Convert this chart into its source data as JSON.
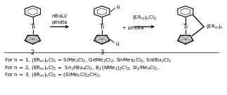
{
  "figsize": [
    3.23,
    1.36
  ],
  "dpi": 100,
  "bg_color": "#ffffff",
  "lines": [
    "For n = 1, (ER$_m$)$_n$Cl$_2$ = SiMe$_2$Cl$_2$, GeMe$_2$Cl$_2$, SnMes$_2$Cl$_2$, Sn$t$Bu$_2$Cl$_2$",
    "For n = 2, (ER$_m$)$_n$Cl$_2$ =  Sn$_2$$t$Bu$_4$Cl$_2$, B$_2$(NMe$_2$)$_2$Cl$_2$, Si$_2$Me$_4$Cl$_2$,",
    "For n = 3, (ER$_m$)$_n$Cl$_2$ = (SiMe$_2$Cl)$_2$CH$_2$,"
  ],
  "text_color": "#000000",
  "fontsize": 5.2
}
